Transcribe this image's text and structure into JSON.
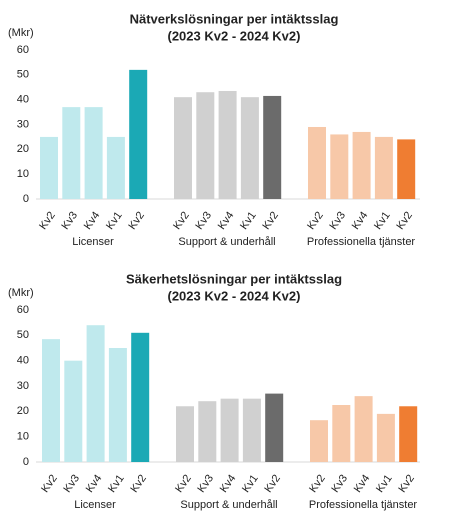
{
  "chart_data": [
    {
      "type": "bar",
      "title": "Nätverkslösningar per intäktsslag",
      "subtitle": "(2023 Kv2 - 2024 Kv2)",
      "ylabel": "(Mkr)",
      "ylim": [
        0,
        60
      ],
      "yticks": [
        0,
        10,
        20,
        30,
        40,
        50,
        60
      ],
      "series": [
        {
          "name": "Licenser",
          "categories": [
            "Kv2",
            "Kv3",
            "Kv4",
            "Kv1",
            "Kv2"
          ],
          "values": [
            25,
            37,
            37,
            25,
            52
          ],
          "colors": [
            "#bfe9ed",
            "#bfe9ed",
            "#bfe9ed",
            "#bfe9ed",
            "#1ba9b5"
          ]
        },
        {
          "name": "Support & underhåll",
          "categories": [
            "Kv2",
            "Kv3",
            "Kv4",
            "Kv1",
            "Kv2"
          ],
          "values": [
            41,
            43,
            43.5,
            41,
            41.5
          ],
          "colors": [
            "#d0d0d0",
            "#d0d0d0",
            "#d0d0d0",
            "#d0d0d0",
            "#6b6b6b"
          ]
        },
        {
          "name": "Professionella tjänster",
          "categories": [
            "Kv2",
            "Kv3",
            "Kv4",
            "Kv1",
            "Kv2"
          ],
          "values": [
            29,
            26,
            27,
            25,
            24
          ],
          "colors": [
            "#f7c8a8",
            "#f7c8a8",
            "#f7c8a8",
            "#f7c8a8",
            "#ef7d32"
          ]
        }
      ]
    },
    {
      "type": "bar",
      "title": "Säkerhetslösningar per intäktsslag",
      "subtitle": "(2023 Kv2 - 2024 Kv2)",
      "ylabel": "(Mkr)",
      "ylim": [
        0,
        60
      ],
      "yticks": [
        0,
        10,
        20,
        30,
        40,
        50,
        60
      ],
      "series": [
        {
          "name": "Licenser",
          "categories": [
            "Kv2",
            "Kv3",
            "Kv4",
            "Kv1",
            "Kv2"
          ],
          "values": [
            48.5,
            40,
            54,
            45,
            51
          ],
          "colors": [
            "#bfe9ed",
            "#bfe9ed",
            "#bfe9ed",
            "#bfe9ed",
            "#1ba9b5"
          ]
        },
        {
          "name": "Support & underhåll",
          "categories": [
            "Kv2",
            "Kv3",
            "Kv4",
            "Kv1",
            "Kv2"
          ],
          "values": [
            22,
            24,
            25,
            25,
            27
          ],
          "colors": [
            "#d0d0d0",
            "#d0d0d0",
            "#d0d0d0",
            "#d0d0d0",
            "#6b6b6b"
          ]
        },
        {
          "name": "Professionella tjänster",
          "categories": [
            "Kv2",
            "Kv3",
            "Kv4",
            "Kv1",
            "Kv2"
          ],
          "values": [
            16.5,
            22.5,
            26,
            19,
            22
          ],
          "colors": [
            "#f7c8a8",
            "#f7c8a8",
            "#f7c8a8",
            "#f7c8a8",
            "#ef7d32"
          ]
        }
      ]
    }
  ]
}
